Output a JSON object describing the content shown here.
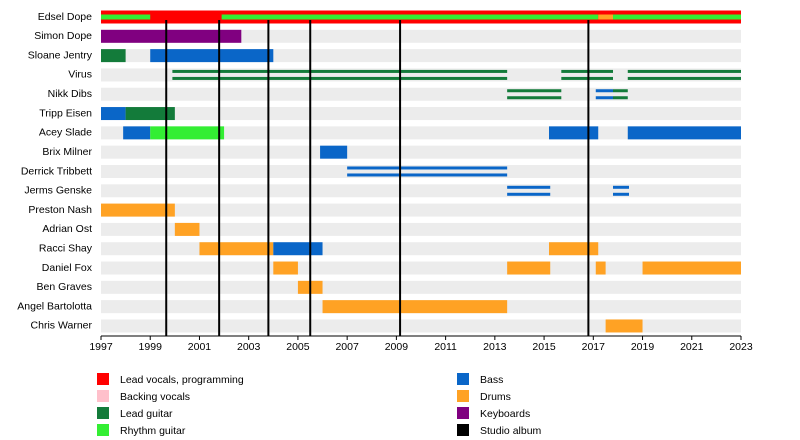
{
  "chart_data": {
    "type": "timeline",
    "xlim": [
      1997,
      2023
    ],
    "xticks": [
      1997,
      1999,
      2001,
      2003,
      2005,
      2007,
      2009,
      2011,
      2013,
      2015,
      2017,
      2019,
      2021,
      2023
    ],
    "roles": [
      {
        "name": "Lead vocals, programming",
        "color": "#ff0000"
      },
      {
        "name": "Backing vocals",
        "color": "#ffc0cb"
      },
      {
        "name": "Lead guitar",
        "color": "#137b3a"
      },
      {
        "name": "Rhythm guitar",
        "color": "#33ee33"
      },
      {
        "name": "Bass",
        "color": "#0a66c8"
      },
      {
        "name": "Drums",
        "color": "#ffa224"
      },
      {
        "name": "Keyboards",
        "color": "#800080"
      },
      {
        "name": "Studio album",
        "color": "#000000"
      }
    ],
    "albums": [
      1999.65,
      2001.8,
      2003.8,
      2005.5,
      2009.15,
      2016.8
    ],
    "members": [
      {
        "name": "Edsel Dope",
        "spans": [
          {
            "role": 0,
            "start": 1997,
            "end": 2023
          },
          {
            "role": 3,
            "start": 1997,
            "end": 1999,
            "style": "stripe"
          },
          {
            "role": 3,
            "start": 2001.9,
            "end": 2017.2,
            "style": "stripe"
          },
          {
            "role": 5,
            "start": 2017.2,
            "end": 2017.8,
            "style": "stripe"
          },
          {
            "role": 3,
            "start": 2017.8,
            "end": 2023,
            "style": "stripe"
          }
        ]
      },
      {
        "name": "Simon Dope",
        "spans": [
          {
            "role": 6,
            "start": 1997,
            "end": 2002.7
          }
        ]
      },
      {
        "name": "Sloane Jentry",
        "spans": [
          {
            "role": 2,
            "start": 1997,
            "end": 1998
          },
          {
            "role": 4,
            "start": 1999,
            "end": 2004
          }
        ]
      },
      {
        "name": "Virus",
        "spans": [
          {
            "role": 2,
            "start": 1999.9,
            "end": 2013.5,
            "style": "double"
          },
          {
            "role": 2,
            "start": 2015.7,
            "end": 2017.8,
            "style": "double"
          },
          {
            "role": 2,
            "start": 2018.4,
            "end": 2023,
            "style": "double"
          }
        ]
      },
      {
        "name": "Nikk Dibs",
        "spans": [
          {
            "role": 2,
            "start": 2013.5,
            "end": 2015.7,
            "style": "double"
          },
          {
            "role": 4,
            "start": 2017.1,
            "end": 2017.8,
            "style": "double"
          },
          {
            "role": 2,
            "start": 2017.8,
            "end": 2018.4,
            "style": "double"
          }
        ]
      },
      {
        "name": "Tripp Eisen",
        "spans": [
          {
            "role": 4,
            "start": 1997,
            "end": 1998
          },
          {
            "role": 2,
            "start": 1998,
            "end": 2000
          }
        ]
      },
      {
        "name": "Acey Slade",
        "spans": [
          {
            "role": 4,
            "start": 1997.9,
            "end": 1999
          },
          {
            "role": 3,
            "start": 1999,
            "end": 2002
          },
          {
            "role": 4,
            "start": 2015.2,
            "end": 2017.2
          },
          {
            "role": 4,
            "start": 2018.4,
            "end": 2023
          }
        ]
      },
      {
        "name": "Brix Milner",
        "spans": [
          {
            "role": 4,
            "start": 2005.9,
            "end": 2007
          }
        ]
      },
      {
        "name": "Derrick Tribbett",
        "spans": [
          {
            "role": 4,
            "start": 2007,
            "end": 2013.5,
            "style": "double"
          }
        ]
      },
      {
        "name": "Jerms Genske",
        "spans": [
          {
            "role": 4,
            "start": 2013.5,
            "end": 2015.25,
            "style": "double"
          },
          {
            "role": 4,
            "start": 2017.8,
            "end": 2018.45,
            "style": "double"
          }
        ]
      },
      {
        "name": "Preston Nash",
        "spans": [
          {
            "role": 5,
            "start": 1997,
            "end": 2000
          }
        ]
      },
      {
        "name": "Adrian Ost",
        "spans": [
          {
            "role": 5,
            "start": 2000,
            "end": 2001
          }
        ]
      },
      {
        "name": "Racci Shay",
        "spans": [
          {
            "role": 5,
            "start": 2001,
            "end": 2004
          },
          {
            "role": 4,
            "start": 2004,
            "end": 2006
          },
          {
            "role": 5,
            "start": 2015.2,
            "end": 2017.2
          }
        ]
      },
      {
        "name": "Daniel Fox",
        "spans": [
          {
            "role": 5,
            "start": 2004,
            "end": 2005
          },
          {
            "role": 5,
            "start": 2013.5,
            "end": 2015.25
          },
          {
            "role": 5,
            "start": 2017.1,
            "end": 2017.5
          },
          {
            "role": 5,
            "start": 2019,
            "end": 2023
          }
        ]
      },
      {
        "name": "Ben Graves",
        "spans": [
          {
            "role": 5,
            "start": 2005,
            "end": 2006
          }
        ]
      },
      {
        "name": "Angel Bartolotta",
        "spans": [
          {
            "role": 5,
            "start": 2006,
            "end": 2013.5
          }
        ]
      },
      {
        "name": "Chris Warner",
        "spans": [
          {
            "role": 5,
            "start": 2017.5,
            "end": 2019
          }
        ]
      }
    ]
  }
}
